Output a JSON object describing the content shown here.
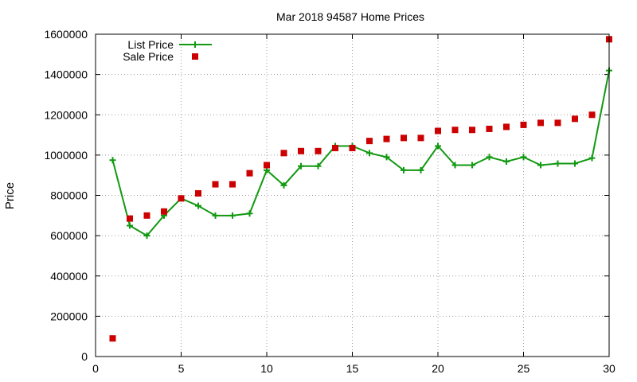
{
  "chart_data": {
    "type": "line",
    "title": "Mar 2018 94587 Home Prices",
    "xlabel": "",
    "ylabel": "Price",
    "xlim": [
      0,
      30
    ],
    "ylim": [
      0,
      1600000
    ],
    "x_ticks": [
      0,
      5,
      10,
      15,
      20,
      25,
      30
    ],
    "y_ticks": [
      0,
      200000,
      400000,
      600000,
      800000,
      1000000,
      1200000,
      1400000,
      1600000
    ],
    "grid": true,
    "legend_position": "top-left",
    "series": [
      {
        "name": "List Price",
        "style": "line-with-plus-markers",
        "color": "#119911",
        "x": [
          1,
          2,
          3,
          4,
          5,
          6,
          7,
          8,
          9,
          10,
          11,
          12,
          13,
          14,
          15,
          16,
          17,
          18,
          19,
          20,
          21,
          22,
          23,
          24,
          25,
          26,
          27,
          28,
          29,
          30
        ],
        "values": [
          975000,
          650000,
          600000,
          700000,
          785000,
          748000,
          700000,
          700000,
          710000,
          925000,
          850000,
          945000,
          945000,
          1045000,
          1045000,
          1010000,
          990000,
          925000,
          925000,
          1045000,
          950000,
          950000,
          990000,
          968000,
          990000,
          950000,
          958000,
          958000,
          985000,
          1420000
        ]
      },
      {
        "name": "Sale Price",
        "style": "square-markers",
        "color": "#cc0000",
        "x": [
          1,
          2,
          3,
          4,
          5,
          6,
          7,
          8,
          9,
          10,
          11,
          12,
          13,
          14,
          15,
          16,
          17,
          18,
          19,
          20,
          21,
          22,
          23,
          24,
          25,
          26,
          27,
          28,
          29,
          30
        ],
        "values": [
          90000,
          685000,
          700000,
          720000,
          785000,
          810000,
          855000,
          855000,
          910000,
          950000,
          1010000,
          1020000,
          1020000,
          1035000,
          1035000,
          1070000,
          1080000,
          1085000,
          1085000,
          1120000,
          1125000,
          1125000,
          1130000,
          1140000,
          1150000,
          1160000,
          1160000,
          1180000,
          1200000,
          1575000
        ]
      }
    ]
  }
}
